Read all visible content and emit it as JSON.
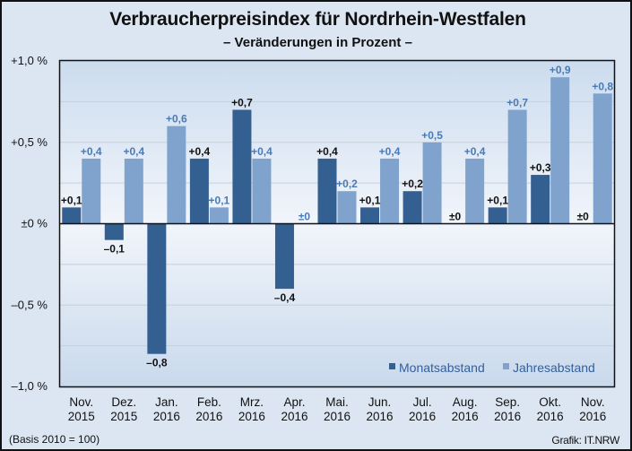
{
  "chart_data": {
    "type": "bar",
    "title": "Verbraucherpreisindex  für Nordrhein-Westfalen",
    "subtitle": "– Veränderungen in Prozent –",
    "xlabel": "",
    "ylabel": "",
    "ylim": [
      -1.0,
      1.0
    ],
    "yticks": [
      1.0,
      0.5,
      0,
      -0.5,
      -1.0
    ],
    "ytick_labels": [
      "+1,0 %",
      "+0,5 %",
      "±0 %",
      "–0,5 %",
      "–1,0 %"
    ],
    "minor_gridlines": [
      0.75,
      0.25,
      -0.25,
      -0.75
    ],
    "grid": true,
    "categories": [
      [
        "Nov.",
        "2015"
      ],
      [
        "Dez.",
        "2015"
      ],
      [
        "Jan.",
        "2016"
      ],
      [
        "Feb.",
        "2016"
      ],
      [
        "Mrz.",
        "2016"
      ],
      [
        "Apr.",
        "2016"
      ],
      [
        "Mai.",
        "2016"
      ],
      [
        "Jun.",
        "2016"
      ],
      [
        "Jul.",
        "2016"
      ],
      [
        "Aug.",
        "2016"
      ],
      [
        "Sep.",
        "2016"
      ],
      [
        "Okt.",
        "2016"
      ],
      [
        "Nov.",
        "2016"
      ]
    ],
    "series": [
      {
        "name": "Monatsabstand",
        "color": "#345f91",
        "label_color": "#111111",
        "values": [
          0.1,
          -0.1,
          -0.8,
          0.4,
          0.7,
          -0.4,
          0.4,
          0.1,
          0.2,
          0.0,
          0.1,
          0.3,
          0.0
        ],
        "labels": [
          "+0,1",
          "–0,1",
          "–0,8",
          "+0,4",
          "+0,7",
          "–0,4",
          "+0,4",
          "+0,1",
          "+0,2",
          "±0",
          "+0,1",
          "+0,3",
          "±0"
        ]
      },
      {
        "name": "Jahresabstand",
        "color": "#7fa3cd",
        "label_color": "#4a7ab5",
        "values": [
          0.4,
          0.4,
          0.6,
          0.1,
          0.4,
          0.0,
          0.2,
          0.4,
          0.5,
          0.4,
          0.7,
          0.9,
          0.8
        ],
        "labels": [
          "+0,4",
          "+0,4",
          "+0,6",
          "+0,1",
          "+0,4",
          "±0",
          "+0,2",
          "+0,4",
          "+0,5",
          "+0,4",
          "+0,7",
          "+0,9",
          "+0,8"
        ]
      }
    ],
    "legend_position": "bottom-right"
  },
  "footer": {
    "basis": "(Basis 2010 = 100)",
    "source": "Grafik: IT.NRW"
  }
}
